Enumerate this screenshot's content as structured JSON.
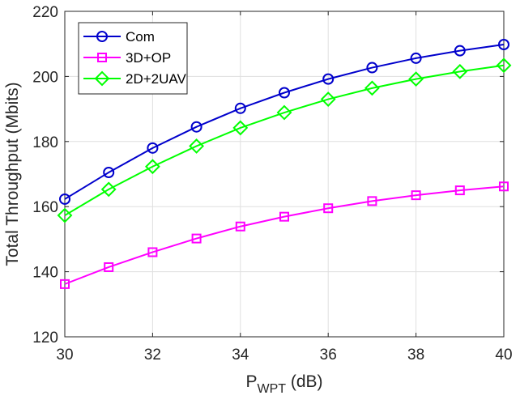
{
  "chart_data": {
    "type": "line",
    "xlabel_main": "P",
    "xlabel_sub": "WPT",
    "xlabel_unit": " (dB)",
    "ylabel": "Total Throughput (Mbits)",
    "xlim": [
      30,
      40
    ],
    "ylim": [
      120,
      220
    ],
    "xticks": [
      30,
      32,
      34,
      36,
      38,
      40
    ],
    "yticks": [
      120,
      140,
      160,
      180,
      200,
      220
    ],
    "grid": true,
    "legend_position": "top-left",
    "x": [
      30,
      31,
      32,
      33,
      34,
      35,
      36,
      37,
      38,
      39,
      40
    ],
    "series": [
      {
        "name": "Com",
        "marker": "circle",
        "color": "#0000CC",
        "values": [
          162.3,
          170.5,
          178.0,
          184.5,
          190.2,
          195.0,
          199.2,
          202.7,
          205.6,
          207.9,
          209.8
        ]
      },
      {
        "name": "3D+OP",
        "marker": "square",
        "color": "#FF00FF",
        "values": [
          136.2,
          141.4,
          146.0,
          150.2,
          153.9,
          156.9,
          159.5,
          161.7,
          163.5,
          165.0,
          166.2
        ]
      },
      {
        "name": "2D+2UAV",
        "marker": "diamond",
        "color": "#00FF00",
        "values": [
          157.3,
          165.3,
          172.3,
          178.6,
          184.2,
          188.9,
          193.0,
          196.4,
          199.2,
          201.5,
          203.4
        ]
      }
    ]
  }
}
